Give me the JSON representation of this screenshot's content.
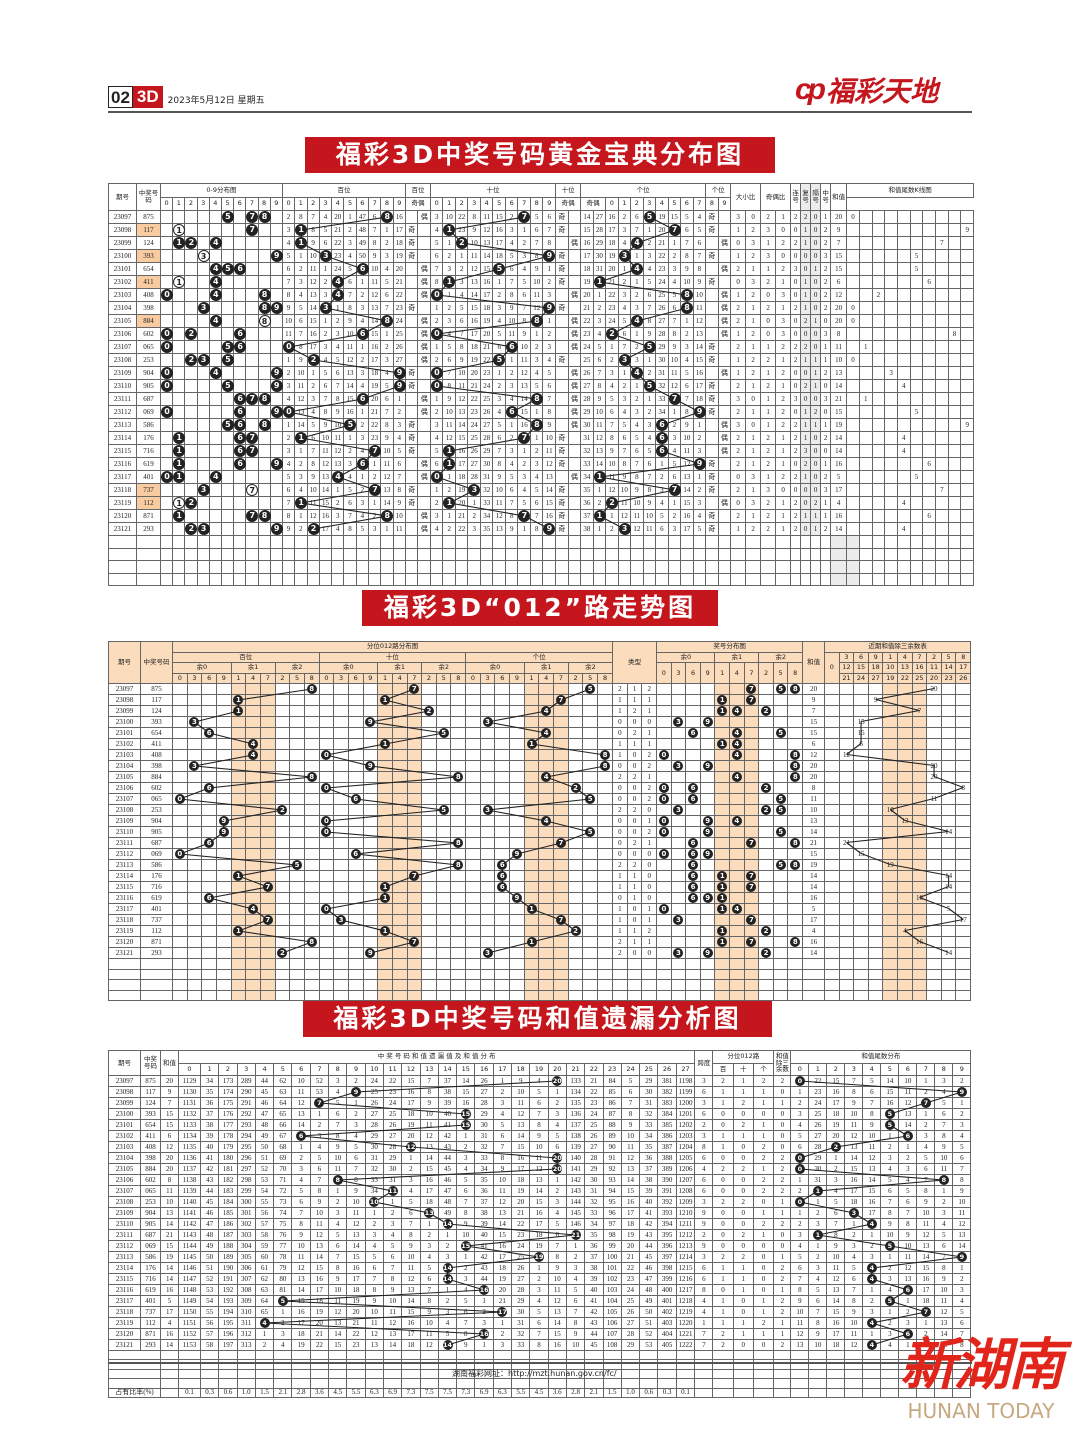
{
  "header": {
    "page_no": "02",
    "section": "3D",
    "date": "2023年5月12日  星期五",
    "logo_mark": "cp",
    "logo_text": "福彩天地"
  },
  "colors": {
    "title_red": "#c4161c",
    "ball": "#222222",
    "highlight": "#f9cba0",
    "band": "#fbdcbd"
  },
  "labels": {
    "odd": "奇",
    "even": "偶"
  },
  "draws": [
    {
      "issue": "23097",
      "number": "875"
    },
    {
      "issue": "23098",
      "number": "117"
    },
    {
      "issue": "23099",
      "number": "124"
    },
    {
      "issue": "23100",
      "number": "393"
    },
    {
      "issue": "23101",
      "number": "654"
    },
    {
      "issue": "23102",
      "number": "411"
    },
    {
      "issue": "23103",
      "number": "408"
    },
    {
      "issue": "23104",
      "number": "398"
    },
    {
      "issue": "23105",
      "number": "884"
    },
    {
      "issue": "23106",
      "number": "602"
    },
    {
      "issue": "23107",
      "number": "065"
    },
    {
      "issue": "23108",
      "number": "253"
    },
    {
      "issue": "23109",
      "number": "904"
    },
    {
      "issue": "23110",
      "number": "905"
    },
    {
      "issue": "23111",
      "number": "687"
    },
    {
      "issue": "23112",
      "number": "069"
    },
    {
      "issue": "23113",
      "number": "586"
    },
    {
      "issue": "23114",
      "number": "176"
    },
    {
      "issue": "23115",
      "number": "716"
    },
    {
      "issue": "23116",
      "number": "619"
    },
    {
      "issue": "23117",
      "number": "401"
    },
    {
      "issue": "23118",
      "number": "737"
    },
    {
      "issue": "23119",
      "number": "112"
    },
    {
      "issue": "23120",
      "number": "871"
    },
    {
      "issue": "23121",
      "number": "293"
    }
  ],
  "t1": {
    "title": "福彩3D中奖号码黄金宝典分布图",
    "h": {
      "issue": "期号",
      "number": "中奖号码",
      "dist": "0-9分布图",
      "hund": "百位",
      "hund_oe": "百位",
      "tens": "十位",
      "tens_oe": "十位",
      "units": "个位",
      "units_oe": "个位",
      "oe": "奇偶",
      "bigsmall": "大小比",
      "oddeven": "奇偶比",
      "consec": "连号",
      "repeat": "复号",
      "skip": "隔号",
      "middle": "中号",
      "sum": "和值",
      "kline": "和值尾数K线图"
    },
    "first_row_omission": {
      "hund": [
        2,
        8,
        7,
        4,
        20,
        1,
        47,
        6,
        null,
        16
      ],
      "tens": [
        3,
        10,
        22,
        8,
        11,
        15,
        2,
        null,
        5,
        6
      ],
      "units": [
        14,
        27,
        16,
        2,
        6,
        null,
        19,
        15,
        5,
        4
      ]
    },
    "stats": [
      [
        3,
        0,
        2,
        1,
        2,
        2,
        0,
        1
      ],
      [
        1,
        2,
        3,
        0,
        0,
        1,
        0,
        2
      ],
      [
        0,
        3,
        1,
        2,
        2,
        1,
        0,
        2
      ],
      [
        1,
        2,
        3,
        0,
        0,
        0,
        0,
        3
      ],
      [
        2,
        1,
        1,
        2,
        3,
        0,
        1,
        2
      ],
      [
        0,
        3,
        2,
        1,
        0,
        1,
        0,
        2
      ],
      [
        1,
        2,
        0,
        3,
        0,
        1,
        0,
        2
      ],
      [
        2,
        1,
        2,
        1,
        2,
        1,
        0,
        2
      ],
      [
        2,
        1,
        0,
        3,
        0,
        2,
        1,
        0
      ],
      [
        1,
        2,
        0,
        3,
        0,
        0,
        0,
        3
      ],
      [
        2,
        1,
        1,
        2,
        2,
        2,
        0,
        1
      ],
      [
        1,
        2,
        2,
        1,
        2,
        1,
        1,
        1
      ],
      [
        1,
        2,
        1,
        2,
        0,
        0,
        1,
        2
      ],
      [
        2,
        1,
        2,
        1,
        0,
        2,
        1,
        0
      ],
      [
        3,
        0,
        1,
        2,
        3,
        0,
        0,
        3
      ],
      [
        2,
        1,
        1,
        2,
        0,
        1,
        2,
        0
      ],
      [
        3,
        0,
        1,
        2,
        2,
        1,
        1,
        1
      ],
      [
        2,
        1,
        2,
        1,
        2,
        1,
        0,
        2
      ],
      [
        2,
        1,
        2,
        1,
        2,
        3,
        0,
        0
      ],
      [
        2,
        1,
        2,
        1,
        0,
        2,
        0,
        1
      ],
      [
        0,
        3,
        1,
        2,
        2,
        1,
        0,
        2
      ],
      [
        2,
        1,
        3,
        0,
        0,
        0,
        0,
        3
      ],
      [
        0,
        3,
        2,
        1,
        2,
        0,
        2,
        1
      ],
      [
        2,
        1,
        2,
        1,
        2,
        1,
        1,
        1
      ],
      [
        1,
        2,
        2,
        1,
        2,
        0,
        1,
        2
      ]
    ]
  },
  "t2": {
    "title": "福彩3D“012”路走势图",
    "h": {
      "issue": "期号",
      "number": "中奖号码",
      "dist": "分位012路分布图",
      "positions": [
        "百位",
        "十位",
        "个位"
      ],
      "groups": [
        "余0",
        "余1",
        "余2"
      ],
      "type": "类型",
      "prize": "奖号分布图",
      "sum": "和值",
      "mod_table": "近期和值除三余数表"
    },
    "digit_order": [
      0,
      3,
      6,
      9,
      1,
      4,
      7,
      2,
      5,
      8
    ],
    "mod_columns": [
      [
        "0"
      ],
      [
        "3",
        "12",
        "21"
      ],
      [
        "6",
        "15",
        "24"
      ],
      [
        "9",
        "18",
        "27"
      ],
      [
        "1",
        "10",
        "19"
      ],
      [
        "4",
        "13",
        "22"
      ],
      [
        "7",
        "16",
        "25"
      ],
      [
        "2",
        "11",
        "20"
      ],
      [
        "5",
        "14",
        "23"
      ],
      [
        "8",
        "17",
        "26"
      ]
    ]
  },
  "t3": {
    "title": "福彩3D中奖号码和值遗漏分析图",
    "h": {
      "issue": "期号",
      "number": "中奖号码",
      "sum": "和值",
      "sum_dist": "中 奖 号 码 和 值 遗 漏 值 及 和 值 分 布",
      "span": "跨度",
      "route": "分位012路",
      "route_cols": [
        "百",
        "十",
        "个"
      ],
      "mod3": "和值除三余数",
      "tail": "和值尾数分布",
      "ratio": "占有比率(%)"
    },
    "first_row_sum_omission": [
      1129,
      34,
      173,
      289,
      44,
      62,
      10,
      52,
      3,
      2,
      24,
      22,
      15,
      7,
      37,
      14,
      26,
      1,
      9,
      4,
      null,
      133,
      21,
      84,
      5,
      29,
      381,
      1198
    ],
    "first_row_tail_omission": [
      null,
      22,
      15,
      7,
      5,
      14,
      10,
      1,
      3,
      2
    ],
    "ratio": [
      "0.1",
      "0.3",
      "0.6",
      "1.0",
      "1.5",
      "2.1",
      "2.8",
      "3.6",
      "4.5",
      "5.5",
      "6.3",
      "6.9",
      "7.3",
      "7.5",
      "7.5",
      "7.3",
      "6.9",
      "6.3",
      "5.5",
      "4.5",
      "3.6",
      "2.8",
      "2.1",
      "1.5",
      "1.0",
      "0.6",
      "0.3",
      "0.1"
    ]
  },
  "footer": {
    "url_text": "湖南福彩网址：http://mzt.hunan.gov.cn/fc/"
  },
  "watermark": {
    "cn": "新湖南",
    "en": "HUNAN TODAY"
  }
}
